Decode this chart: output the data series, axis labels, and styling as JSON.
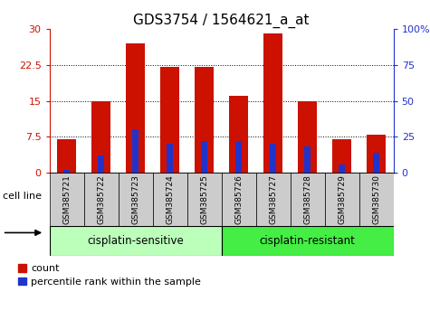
{
  "title": "GDS3754 / 1564621_a_at",
  "samples": [
    "GSM385721",
    "GSM385722",
    "GSM385723",
    "GSM385724",
    "GSM385725",
    "GSM385726",
    "GSM385727",
    "GSM385728",
    "GSM385729",
    "GSM385730"
  ],
  "count_values": [
    7.0,
    15.0,
    27.0,
    22.0,
    22.0,
    16.0,
    29.0,
    15.0,
    7.0,
    8.0
  ],
  "percentile_values": [
    2.0,
    12.0,
    30.0,
    20.0,
    22.0,
    22.0,
    20.0,
    18.0,
    6.0,
    14.0
  ],
  "red_color": "#cc1100",
  "blue_color": "#2233cc",
  "ylim_left": [
    0,
    30
  ],
  "ylim_right": [
    0,
    100
  ],
  "yticks_left": [
    0,
    7.5,
    15,
    22.5,
    30
  ],
  "yticks_right": [
    0,
    25,
    50,
    75,
    100
  ],
  "ytick_labels_left": [
    "0",
    "7.5",
    "15",
    "22.5",
    "30"
  ],
  "ytick_labels_right": [
    "0",
    "25",
    "50",
    "75",
    "100%"
  ],
  "group1_label": "cisplatin-sensitive",
  "group2_label": "cisplatin-resistant",
  "group1_color": "#bbffbb",
  "group2_color": "#44ee44",
  "cell_line_label": "cell line",
  "legend_count": "count",
  "legend_percentile": "percentile rank within the sample",
  "bar_width": 0.55,
  "tick_color_left": "#cc1100",
  "tick_color_right": "#2233cc",
  "title_fontsize": 11,
  "axis_fontsize": 8,
  "label_fontsize": 8,
  "sample_tick_fontsize": 6.5,
  "group_label_fontsize": 8.5
}
